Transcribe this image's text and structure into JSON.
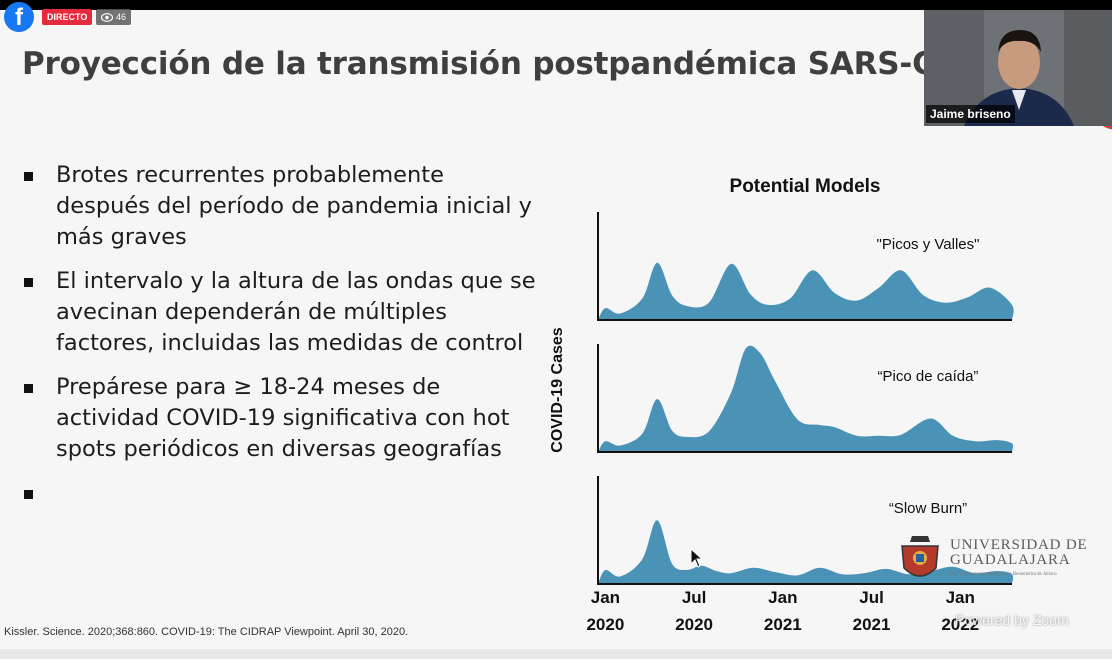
{
  "overlay": {
    "live_label": "DIRECTO",
    "viewer_count": "46"
  },
  "slide": {
    "title": "Proyección de la transmisión postpandémica SARS-CoV-",
    "bullets": [
      "Brotes recurrentes probablemente después del período de pandemia inicial y más graves",
      "El intervalo y la altura de las ondas que se avecinan dependerán de múltiples factores, incluidas las medidas de control",
      "Prepárese para ≥ 18-24 meses de actividad COVID-19 significativa con hot spots periódicos en diversas geografías",
      ""
    ],
    "citation": "Kissler. Science. 2020;368:860. COVID-19: The CIDRAP Viewpoint. April 30, 2020.",
    "university": {
      "name_line1": "UNIVERSIDAD DE",
      "name_line2": "GUADALAJARA",
      "subtitle": "Red Universitaria e Institución Benemérita de Jalisco"
    },
    "watermark": "Powered by Zoom"
  },
  "presenter": {
    "name": "Jaime briseno"
  },
  "chart_data": {
    "type": "area",
    "title": "Potential Models",
    "ylabel": "COVID-19 Cases",
    "xlabel": "",
    "x_ticks": [
      {
        "month": "Jan",
        "year": "2020",
        "t": 0
      },
      {
        "month": "Jul",
        "year": "2020",
        "t": 6
      },
      {
        "month": "Jan",
        "year": "2021",
        "t": 12
      },
      {
        "month": "Jul",
        "year": "2021",
        "t": 18
      },
      {
        "month": "Jan",
        "year": "2022",
        "t": 24
      }
    ],
    "xlim": [
      -0.5,
      27.5
    ],
    "ylim": [
      0,
      10
    ],
    "grid": false,
    "color": "#4a93b6",
    "panels": [
      {
        "label": "\"Picos y Valles\"",
        "series": [
          [
            -0.5,
            0
          ],
          [
            0,
            1.1
          ],
          [
            1,
            0.6
          ],
          [
            2.5,
            2
          ],
          [
            3.5,
            5.3
          ],
          [
            4.5,
            2.3
          ],
          [
            5.5,
            1.3
          ],
          [
            7,
            1.6
          ],
          [
            8.5,
            5.2
          ],
          [
            9.8,
            2.4
          ],
          [
            11,
            1.4
          ],
          [
            12.5,
            2
          ],
          [
            14,
            4.6
          ],
          [
            15.5,
            2.5
          ],
          [
            17,
            1.8
          ],
          [
            18.5,
            3
          ],
          [
            20,
            4.6
          ],
          [
            21.5,
            2.3
          ],
          [
            23,
            1.6
          ],
          [
            24.5,
            2.1
          ],
          [
            26,
            3
          ],
          [
            27.5,
            1.4
          ],
          [
            27.5,
            0
          ]
        ]
      },
      {
        "label": "“Pico de caída”",
        "series": [
          [
            -0.5,
            0
          ],
          [
            0,
            1
          ],
          [
            1,
            0.6
          ],
          [
            2.5,
            1.7
          ],
          [
            3.5,
            4.9
          ],
          [
            4.5,
            2
          ],
          [
            5.5,
            1.4
          ],
          [
            7,
            1.9
          ],
          [
            8.5,
            5.5
          ],
          [
            9.5,
            9.6
          ],
          [
            10.5,
            9.1
          ],
          [
            11.5,
            6.5
          ],
          [
            13,
            3
          ],
          [
            14.5,
            2.5
          ],
          [
            15.5,
            2.3
          ],
          [
            17,
            1.5
          ],
          [
            18.5,
            1.5
          ],
          [
            20,
            1.6
          ],
          [
            22,
            3.1
          ],
          [
            23.5,
            1.5
          ],
          [
            25,
            1
          ],
          [
            26.5,
            1.1
          ],
          [
            27.5,
            0.8
          ],
          [
            27.5,
            0
          ]
        ]
      },
      {
        "label": "“Slow Burn”",
        "series": [
          [
            -0.5,
            0
          ],
          [
            0,
            1.3
          ],
          [
            1,
            0.7
          ],
          [
            2.5,
            2.3
          ],
          [
            3.5,
            5.9
          ],
          [
            4.5,
            1.9
          ],
          [
            5.5,
            1.3
          ],
          [
            6.5,
            1.7
          ],
          [
            7.5,
            1.2
          ],
          [
            8.5,
            1
          ],
          [
            10,
            1.5
          ],
          [
            11.5,
            1.1
          ],
          [
            13,
            0.8
          ],
          [
            14.5,
            1.5
          ],
          [
            16,
            0.9
          ],
          [
            17.5,
            1
          ],
          [
            19,
            1.4
          ],
          [
            20.5,
            0.9
          ],
          [
            22,
            1.2
          ],
          [
            23.5,
            1.6
          ],
          [
            25,
            1
          ],
          [
            26.5,
            1.2
          ],
          [
            27.5,
            0.9
          ],
          [
            27.5,
            0
          ]
        ]
      }
    ]
  }
}
